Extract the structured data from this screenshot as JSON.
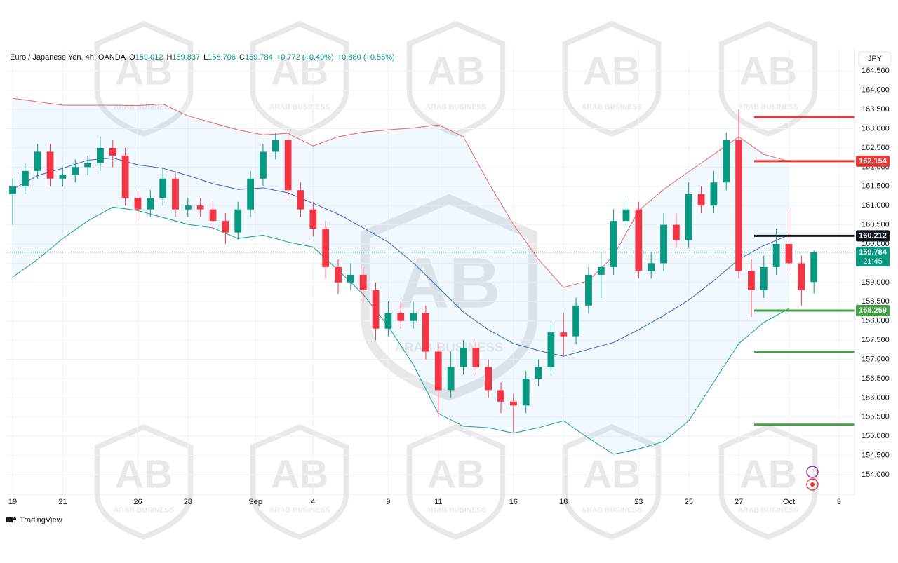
{
  "chart_data": {
    "type": "candlestick",
    "title": "Euro / Japanese Yen, 4h, OANDA",
    "header_fields": [
      {
        "key": "O",
        "value": 159.012
      },
      {
        "key": "H",
        "value": 159.837
      },
      {
        "key": "L",
        "value": 158.706
      },
      {
        "key": "C",
        "value": 159.784
      }
    ],
    "header_changes": [
      "+0.772 (+0.49%)",
      "+0.880 (+0.55%)"
    ],
    "currency": "JPY",
    "up_color": "#089981",
    "down_color": "#f23645",
    "x": [
      0,
      0.5,
      1,
      1.5,
      2,
      2.5,
      3,
      3.5,
      4,
      4.5,
      5,
      5.5,
      6,
      6.5,
      7,
      7.5,
      8,
      8.5,
      9,
      9.5,
      10,
      10.5,
      11,
      11.5,
      12,
      12.5,
      13,
      13.5,
      14,
      14.5,
      15,
      15.5,
      16,
      16.5,
      17,
      17.5,
      18,
      18.5,
      19,
      19.5,
      20,
      20.5,
      21,
      21.5,
      22,
      22.5,
      23,
      23.5,
      24,
      24.5,
      25,
      25.5,
      26,
      26.5,
      27,
      27.5,
      28,
      28.5,
      29,
      29.5,
      30,
      30.5,
      31,
      31.5,
      32
    ],
    "open": [
      161.3,
      161.5,
      161.9,
      162.4,
      161.7,
      161.8,
      162.0,
      162.1,
      162.5,
      162.3,
      161.2,
      160.9,
      161.2,
      161.7,
      160.9,
      161.0,
      160.9,
      160.6,
      160.3,
      160.9,
      161.7,
      162.4,
      162.7,
      161.4,
      160.9,
      160.4,
      159.4,
      159.0,
      159.2,
      158.8,
      157.8,
      158.2,
      158.0,
      158.2,
      157.2,
      156.2,
      156.8,
      157.3,
      156.8,
      156.2,
      155.9,
      155.8,
      156.5,
      156.8,
      157.7,
      157.6,
      158.4,
      159.2,
      159.4,
      160.6,
      160.9,
      159.3,
      159.5,
      160.5,
      160.1,
      161.3,
      161.0,
      161.6,
      162.7,
      159.3,
      158.8,
      159.4,
      160.0,
      159.5,
      159.012
    ],
    "high": [
      161.7,
      162.1,
      162.6,
      162.6,
      162.0,
      162.2,
      162.3,
      162.8,
      162.7,
      162.5,
      161.4,
      161.4,
      162.0,
      161.9,
      161.2,
      161.2,
      161.1,
      160.8,
      161.1,
      161.9,
      162.6,
      162.9,
      162.9,
      161.6,
      161.1,
      160.6,
      159.6,
      159.5,
      159.4,
      159.0,
      158.5,
      158.5,
      158.5,
      158.4,
      157.4,
      157.2,
      157.5,
      157.5,
      157.0,
      156.4,
      156.1,
      156.7,
      157.0,
      157.9,
      158.2,
      158.6,
      159.4,
      159.8,
      160.9,
      161.2,
      161.1,
      159.8,
      160.8,
      160.8,
      161.6,
      161.5,
      161.9,
      162.9,
      163.5,
      159.6,
      159.7,
      160.4,
      160.9,
      159.7,
      159.837
    ],
    "low": [
      160.5,
      161.3,
      161.7,
      161.5,
      161.5,
      161.6,
      161.8,
      161.9,
      162.0,
      161.0,
      160.6,
      160.7,
      161.0,
      160.7,
      160.7,
      160.7,
      160.4,
      160.0,
      160.1,
      160.7,
      161.5,
      162.2,
      161.2,
      160.7,
      160.2,
      159.1,
      158.7,
      158.8,
      158.5,
      157.5,
      157.6,
      157.8,
      157.8,
      157.0,
      155.5,
      156.0,
      156.6,
      156.6,
      156.0,
      155.6,
      155.1,
      155.6,
      156.3,
      156.6,
      157.1,
      157.4,
      158.2,
      158.6,
      159.2,
      160.4,
      159.1,
      159.1,
      159.3,
      159.9,
      159.9,
      160.8,
      160.8,
      161.4,
      159.1,
      158.1,
      158.6,
      159.2,
      159.3,
      158.4,
      158.706
    ],
    "close": [
      161.5,
      161.9,
      162.4,
      161.7,
      161.8,
      162.0,
      162.1,
      162.5,
      162.3,
      161.2,
      160.9,
      161.2,
      161.7,
      160.9,
      161.0,
      160.9,
      160.6,
      160.3,
      160.9,
      161.7,
      162.4,
      162.7,
      161.4,
      160.9,
      160.4,
      159.4,
      159.0,
      159.2,
      158.8,
      157.8,
      158.2,
      158.0,
      158.2,
      157.2,
      156.2,
      156.8,
      157.3,
      156.8,
      156.2,
      155.9,
      155.8,
      156.5,
      156.8,
      157.7,
      157.6,
      158.4,
      159.2,
      159.4,
      160.6,
      160.9,
      159.3,
      159.5,
      160.5,
      160.1,
      161.3,
      161.0,
      161.6,
      162.7,
      159.3,
      158.8,
      159.4,
      160.0,
      159.5,
      158.8,
      159.784
    ],
    "bands": {
      "x": [
        0,
        1,
        2,
        3,
        4,
        5,
        6,
        7,
        8,
        9,
        10,
        11,
        12,
        13,
        14,
        15,
        16,
        17,
        18,
        19,
        20,
        21,
        22,
        23,
        24,
        25,
        26,
        27,
        28,
        29,
        30,
        31
      ],
      "upper": [
        163.79,
        163.7,
        163.61,
        163.61,
        163.61,
        163.6,
        163.64,
        163.33,
        163.15,
        162.97,
        162.84,
        162.88,
        162.55,
        162.79,
        162.91,
        162.97,
        163.02,
        163.1,
        162.79,
        161.6,
        160.51,
        159.6,
        158.87,
        159.05,
        159.69,
        160.87,
        161.42,
        161.88,
        162.33,
        162.79,
        162.33,
        162.15
      ],
      "middle": [
        161.42,
        161.78,
        161.97,
        162.18,
        162.24,
        162.06,
        161.97,
        161.78,
        161.57,
        161.42,
        161.46,
        161.33,
        161.06,
        160.78,
        160.42,
        160.05,
        159.51,
        158.87,
        158.23,
        157.77,
        157.41,
        157.23,
        157.08,
        157.26,
        157.44,
        157.77,
        158.14,
        158.54,
        159.05,
        159.6,
        159.96,
        160.23
      ],
      "lower": [
        159.14,
        159.6,
        160.14,
        160.6,
        160.96,
        160.87,
        160.69,
        160.51,
        160.42,
        160.14,
        160.23,
        160.05,
        159.92,
        159.32,
        158.69,
        157.86,
        156.86,
        155.59,
        155.26,
        155.22,
        155.08,
        155.22,
        155.4,
        154.95,
        154.53,
        154.67,
        154.86,
        155.4,
        156.41,
        157.41,
        157.96,
        158.32
      ],
      "upper_color": "#e57373",
      "middle_color": "#4a72c4",
      "lower_color": "#26a69a",
      "fill": "#2196f3"
    },
    "levels": [
      {
        "value": 163.3,
        "color": "#e53935"
      },
      {
        "value": 162.154,
        "color": "#e53935",
        "tag": true
      },
      {
        "value": 160.212,
        "color": "#131722",
        "tag": true
      },
      {
        "value": 158.269,
        "color": "#43a047",
        "tag": true
      },
      {
        "value": 157.2,
        "color": "#43a047"
      },
      {
        "value": 155.3,
        "color": "#43a047"
      }
    ],
    "price_tag": {
      "value": 159.784,
      "countdown": "21:45",
      "color": "#089981"
    },
    "xlim": [
      -0.28,
      33.62
    ],
    "ylim": [
      153.49,
      165.07
    ],
    "xticks": [
      {
        "value": 0,
        "label": "19"
      },
      {
        "value": 2,
        "label": "21"
      },
      {
        "value": 5,
        "label": "26"
      },
      {
        "value": 7,
        "label": "28"
      },
      {
        "value": 9.7,
        "label": "Sep"
      },
      {
        "value": 12,
        "label": "4"
      },
      {
        "value": 15,
        "label": "9"
      },
      {
        "value": 17,
        "label": "11"
      },
      {
        "value": 20,
        "label": "16"
      },
      {
        "value": 22,
        "label": "18"
      },
      {
        "value": 25,
        "label": "23"
      },
      {
        "value": 27,
        "label": "25"
      },
      {
        "value": 29,
        "label": "27"
      },
      {
        "value": 31,
        "label": "Oct"
      },
      {
        "value": 33,
        "label": "3"
      }
    ],
    "yticks": [
      {
        "value": 154,
        "label": "154.000"
      },
      {
        "value": 154.5,
        "label": "154.500"
      },
      {
        "value": 155,
        "label": "155.000"
      },
      {
        "value": 155.5,
        "label": "155.500"
      },
      {
        "value": 156,
        "label": "156.000"
      },
      {
        "value": 156.5,
        "label": "156.500"
      },
      {
        "value": 157,
        "label": "157.000"
      },
      {
        "value": 157.5,
        "label": "157.500"
      },
      {
        "value": 158,
        "label": "158.000"
      },
      {
        "value": 158.5,
        "label": "158.500"
      },
      {
        "value": 159,
        "label": "159.000"
      },
      {
        "value": 159.5,
        "label": "159.500"
      },
      {
        "value": 160,
        "label": "160.000"
      },
      {
        "value": 160.5,
        "label": "160.500"
      },
      {
        "value": 161,
        "label": "161.000"
      },
      {
        "value": 161.5,
        "label": "161.500"
      },
      {
        "value": 162,
        "label": "162.000"
      },
      {
        "value": 162.5,
        "label": "162.500"
      },
      {
        "value": 163,
        "label": "163.000"
      },
      {
        "value": 163.5,
        "label": "163.500"
      },
      {
        "value": 164,
        "label": "164.000"
      },
      {
        "value": 164.5,
        "label": "164.500"
      }
    ],
    "grid": true
  },
  "branding": "TradingView",
  "watermark": {
    "logo": "AB",
    "name": "ARAB BUSINESS"
  }
}
